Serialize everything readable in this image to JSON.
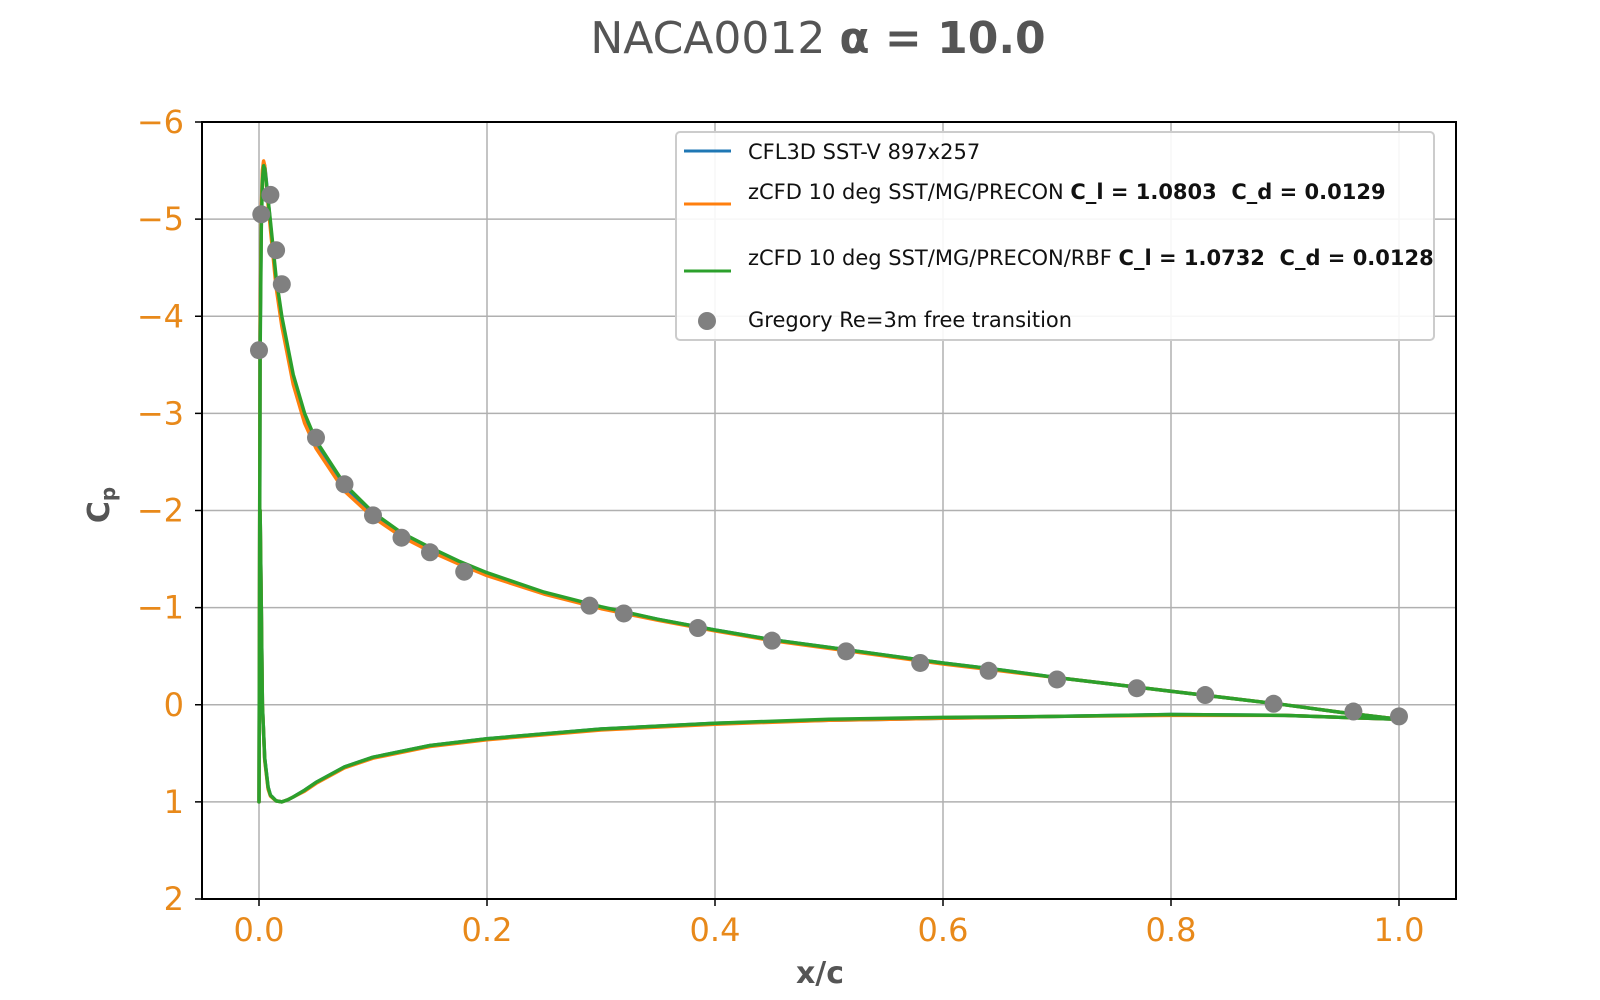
{
  "chart_data": {
    "type": "line",
    "title": {
      "text": "NACA0012",
      "bold_part": "α = 10.0"
    },
    "xlabel": "x/c",
    "ylabel": {
      "base": "C",
      "sub": "p"
    },
    "xlim": [
      -0.05,
      1.05
    ],
    "ylim": [
      2,
      -6
    ],
    "y_inverted": true,
    "xticks": [
      0.0,
      0.2,
      0.4,
      0.6,
      0.8,
      1.0
    ],
    "xtick_labels": [
      "0.0",
      "0.2",
      "0.4",
      "0.6",
      "0.8",
      "1.0"
    ],
    "yticks": [
      -6,
      -5,
      -4,
      -3,
      -2,
      -1,
      0,
      1,
      2
    ],
    "ytick_labels": [
      "−6",
      "−5",
      "−4",
      "−3",
      "−2",
      "−1",
      "0",
      "1",
      "2"
    ],
    "grid": true,
    "legend_position": "top-right",
    "tick_label_color": "#E8891A",
    "series": [
      {
        "name": "CFL3D SST-V 897x257",
        "color": "#1f77b4",
        "style": "line",
        "legend": {
          "text": "CFL3D SST-V 897x257"
        },
        "upper": {
          "x": [
            0.0,
            0.0005,
            0.001,
            0.002,
            0.003,
            0.004,
            0.005,
            0.006,
            0.008,
            0.01,
            0.015,
            0.02,
            0.03,
            0.04,
            0.05,
            0.075,
            0.1,
            0.125,
            0.15,
            0.175,
            0.2,
            0.25,
            0.3,
            0.35,
            0.4,
            0.45,
            0.5,
            0.55,
            0.6,
            0.65,
            0.7,
            0.75,
            0.8,
            0.85,
            0.9,
            0.95,
            1.0
          ],
          "y": [
            1.0,
            -1.5,
            -3.8,
            -5.0,
            -5.45,
            -5.58,
            -5.55,
            -5.45,
            -5.2,
            -4.95,
            -4.35,
            -3.95,
            -3.35,
            -2.95,
            -2.68,
            -2.23,
            -1.95,
            -1.75,
            -1.6,
            -1.46,
            -1.34,
            -1.15,
            -1.0,
            -0.88,
            -0.77,
            -0.67,
            -0.59,
            -0.51,
            -0.43,
            -0.36,
            -0.28,
            -0.21,
            -0.14,
            -0.07,
            0.0,
            0.08,
            0.15
          ]
        },
        "lower": {
          "x": [
            0.0,
            0.001,
            0.002,
            0.003,
            0.005,
            0.008,
            0.01,
            0.015,
            0.02,
            0.025,
            0.03,
            0.04,
            0.05,
            0.075,
            0.1,
            0.15,
            0.2,
            0.3,
            0.4,
            0.5,
            0.6,
            0.7,
            0.8,
            0.9,
            0.95,
            1.0
          ],
          "y": [
            1.0,
            -2.0,
            -1.0,
            0.0,
            0.55,
            0.85,
            0.93,
            0.99,
            1.0,
            0.98,
            0.95,
            0.88,
            0.8,
            0.64,
            0.54,
            0.42,
            0.35,
            0.25,
            0.19,
            0.16,
            0.14,
            0.12,
            0.1,
            0.11,
            0.13,
            0.15
          ]
        }
      },
      {
        "name": "zCFD 10 deg SST/MG/PRECON",
        "color": "#ff7f0e",
        "style": "line",
        "legend": {
          "text": "zCFD 10 deg SST/MG/PRECON ",
          "bold": "C_l = 1.0803  C_d = 0.0129"
        },
        "upper": {
          "x": [
            0.0,
            0.0005,
            0.001,
            0.002,
            0.003,
            0.004,
            0.005,
            0.006,
            0.008,
            0.01,
            0.015,
            0.02,
            0.03,
            0.04,
            0.05,
            0.075,
            0.1,
            0.125,
            0.15,
            0.175,
            0.2,
            0.25,
            0.3,
            0.35,
            0.4,
            0.45,
            0.5,
            0.55,
            0.6,
            0.65,
            0.7,
            0.75,
            0.8,
            0.85,
            0.9,
            0.95,
            1.0
          ],
          "y": [
            1.0,
            -1.6,
            -3.9,
            -5.1,
            -5.5,
            -5.6,
            -5.55,
            -5.42,
            -5.15,
            -4.9,
            -4.3,
            -3.9,
            -3.3,
            -2.9,
            -2.64,
            -2.2,
            -1.93,
            -1.73,
            -1.58,
            -1.45,
            -1.33,
            -1.14,
            -0.99,
            -0.87,
            -0.76,
            -0.66,
            -0.58,
            -0.5,
            -0.42,
            -0.35,
            -0.28,
            -0.21,
            -0.14,
            -0.07,
            0.0,
            0.08,
            0.15
          ]
        },
        "lower": {
          "x": [
            0.0,
            0.001,
            0.002,
            0.003,
            0.005,
            0.008,
            0.01,
            0.015,
            0.02,
            0.025,
            0.03,
            0.04,
            0.05,
            0.075,
            0.1,
            0.15,
            0.2,
            0.3,
            0.4,
            0.5,
            0.6,
            0.7,
            0.8,
            0.9,
            0.95,
            1.0
          ],
          "y": [
            1.0,
            -2.0,
            -1.0,
            0.0,
            0.57,
            0.87,
            0.94,
            0.99,
            1.0,
            0.98,
            0.95,
            0.89,
            0.81,
            0.65,
            0.55,
            0.43,
            0.36,
            0.26,
            0.2,
            0.16,
            0.14,
            0.12,
            0.11,
            0.11,
            0.13,
            0.15
          ]
        }
      },
      {
        "name": "zCFD 10 deg SST/MG/PRECON/RBF",
        "color": "#2ca02c",
        "style": "line",
        "legend": {
          "text": "zCFD 10 deg SST/MG/PRECON/RBF ",
          "bold": "C_l = 1.0732  C_d = 0.0128"
        },
        "upper": {
          "x": [
            0.0,
            0.0005,
            0.001,
            0.002,
            0.003,
            0.004,
            0.005,
            0.006,
            0.008,
            0.01,
            0.015,
            0.02,
            0.03,
            0.04,
            0.05,
            0.075,
            0.1,
            0.125,
            0.15,
            0.175,
            0.2,
            0.25,
            0.3,
            0.35,
            0.4,
            0.45,
            0.5,
            0.55,
            0.6,
            0.65,
            0.7,
            0.75,
            0.8,
            0.85,
            0.9,
            0.95,
            1.0
          ],
          "y": [
            1.0,
            -1.4,
            -3.6,
            -4.9,
            -5.4,
            -5.55,
            -5.52,
            -5.42,
            -5.2,
            -4.98,
            -4.4,
            -4.0,
            -3.4,
            -3.0,
            -2.72,
            -2.27,
            -1.98,
            -1.77,
            -1.62,
            -1.48,
            -1.36,
            -1.16,
            -1.01,
            -0.88,
            -0.77,
            -0.67,
            -0.59,
            -0.51,
            -0.43,
            -0.36,
            -0.28,
            -0.21,
            -0.14,
            -0.07,
            0.0,
            0.08,
            0.15
          ]
        },
        "lower": {
          "x": [
            0.0,
            0.001,
            0.002,
            0.003,
            0.005,
            0.008,
            0.01,
            0.015,
            0.02,
            0.025,
            0.03,
            0.04,
            0.05,
            0.075,
            0.1,
            0.15,
            0.2,
            0.3,
            0.4,
            0.5,
            0.6,
            0.7,
            0.8,
            0.9,
            0.95,
            1.0
          ],
          "y": [
            1.0,
            -2.0,
            -1.0,
            0.0,
            0.55,
            0.85,
            0.93,
            0.99,
            1.0,
            0.98,
            0.95,
            0.88,
            0.8,
            0.64,
            0.54,
            0.42,
            0.35,
            0.25,
            0.19,
            0.15,
            0.13,
            0.12,
            0.1,
            0.11,
            0.13,
            0.15
          ]
        }
      },
      {
        "name": "Gregory Re=3m free transition",
        "color": "#808080",
        "style": "scatter",
        "legend": {
          "text": "Gregory Re=3m free transition"
        },
        "x": [
          0.0,
          0.002,
          0.01,
          0.015,
          0.02,
          0.05,
          0.075,
          0.1,
          0.125,
          0.15,
          0.18,
          0.29,
          0.32,
          0.385,
          0.45,
          0.515,
          0.58,
          0.64,
          0.7,
          0.77,
          0.83,
          0.89,
          0.96,
          1.0
        ],
        "y": [
          -3.65,
          -5.05,
          -5.25,
          -4.68,
          -4.33,
          -2.75,
          -2.27,
          -1.95,
          -1.72,
          -1.57,
          -1.37,
          -1.02,
          -0.94,
          -0.79,
          -0.66,
          -0.55,
          -0.43,
          -0.35,
          -0.26,
          -0.17,
          -0.1,
          -0.01,
          0.07,
          0.12
        ]
      }
    ]
  }
}
